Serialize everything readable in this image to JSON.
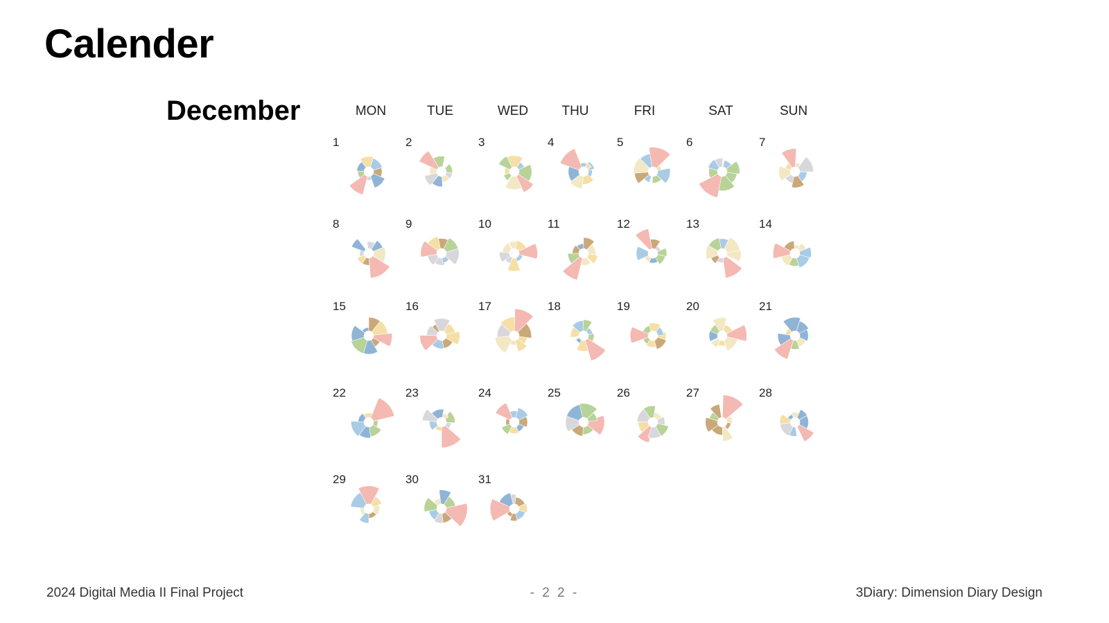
{
  "slide": {
    "title": "Calender",
    "month": "December",
    "page_number": "- 2 2 -"
  },
  "footer": {
    "left": "2024  Digital Media II  Final Project",
    "right": "3Diary: Dimension Diary Design"
  },
  "calendar": {
    "weekdays": [
      "MON",
      "TUE",
      "WED",
      "THU",
      "FRI",
      "SAT",
      "SUN"
    ],
    "days": [
      "1",
      "2",
      "3",
      "4",
      "5",
      "6",
      "7",
      "8",
      "9",
      "10",
      "11",
      "12",
      "13",
      "14",
      "15",
      "16",
      "17",
      "18",
      "19",
      "20",
      "21",
      "22",
      "23",
      "24",
      "25",
      "26",
      "27",
      "28",
      "29",
      "30",
      "31"
    ],
    "first_weekday_index": 0
  },
  "colors": {
    "pink": "#f4b9b2",
    "green": "#b7d398",
    "blue": "#8fb4d6",
    "yellow": "#f5dfa6",
    "tan": "#c9a97a",
    "cream": "#f3e8c4",
    "gray": "#d8d8dc",
    "light_blue": "#a9cbe6"
  }
}
